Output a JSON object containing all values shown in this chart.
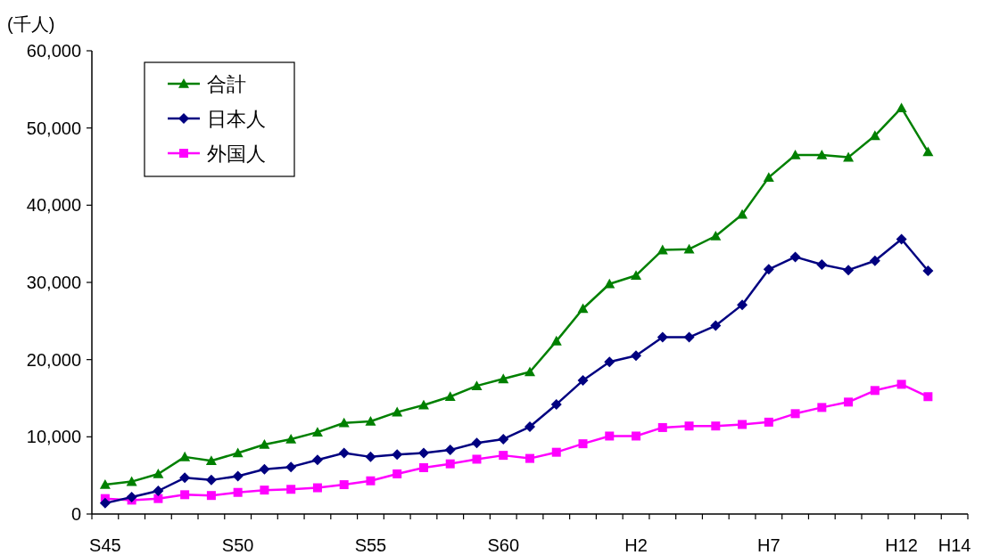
{
  "chart_data": {
    "type": "line",
    "ylabel": "(千人)",
    "categories": [
      "S45",
      null,
      null,
      null,
      null,
      "S50",
      null,
      null,
      null,
      null,
      "S55",
      null,
      null,
      null,
      null,
      "S60",
      null,
      null,
      null,
      null,
      "H2",
      null,
      null,
      null,
      null,
      "H7",
      null,
      null,
      null,
      null,
      "H12",
      null,
      "H14"
    ],
    "series": [
      {
        "name": "合計",
        "color": "#008000",
        "marker": "triangle",
        "values": [
          3800,
          4200,
          5200,
          7400,
          6900,
          7900,
          9000,
          9700,
          10600,
          11800,
          12000,
          13200,
          14100,
          15200,
          16600,
          17500,
          18400,
          22400,
          26600,
          29800,
          30900,
          34200,
          34300,
          36000,
          38800,
          43600,
          46500,
          46500,
          46200,
          49000,
          52600,
          46900,
          null
        ]
      },
      {
        "name": "日本人",
        "color": "#000080",
        "marker": "diamond",
        "values": [
          1400,
          2200,
          3000,
          4700,
          4400,
          4900,
          5800,
          6100,
          7000,
          7900,
          7400,
          7700,
          7900,
          8300,
          9200,
          9700,
          11300,
          14200,
          17300,
          19700,
          20500,
          22900,
          22900,
          24400,
          27100,
          31700,
          33300,
          32300,
          31600,
          32800,
          35600,
          31500,
          null
        ]
      },
      {
        "name": "外国人",
        "color": "#ff00ff",
        "marker": "square",
        "values": [
          2000,
          1800,
          2000,
          2500,
          2400,
          2800,
          3100,
          3200,
          3400,
          3800,
          4300,
          5200,
          6000,
          6500,
          7100,
          7600,
          7200,
          8000,
          9100,
          10100,
          10100,
          11200,
          11400,
          11400,
          11600,
          11900,
          13000,
          13800,
          14500,
          16000,
          16800,
          15200,
          null
        ]
      }
    ],
    "ylim": [
      0,
      60000
    ],
    "yticks": [
      {
        "value": 0,
        "label": "0"
      },
      {
        "value": 10000,
        "label": "10,000"
      },
      {
        "value": 20000,
        "label": "20,000"
      },
      {
        "value": 30000,
        "label": "30,000"
      },
      {
        "value": 40000,
        "label": "40,000"
      },
      {
        "value": 50000,
        "label": "50,000"
      },
      {
        "value": 60000,
        "label": "60,000"
      }
    ],
    "grid": false,
    "legend": "top left",
    "line_style": "solid"
  }
}
